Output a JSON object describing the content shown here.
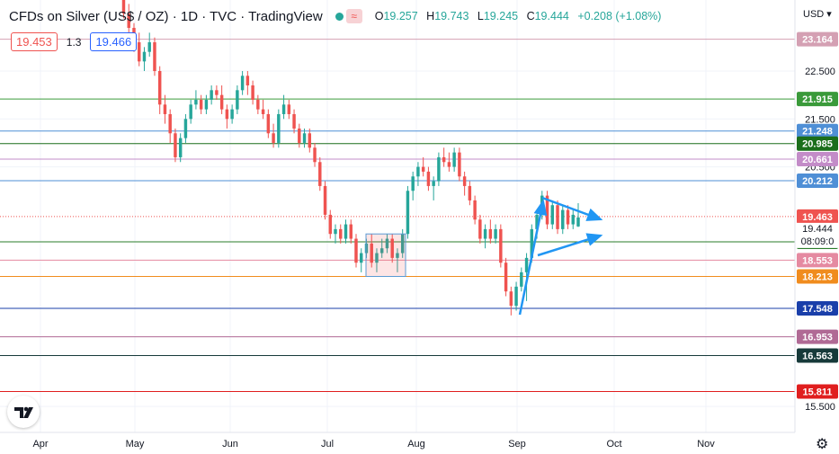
{
  "header": {
    "title": "CFDs on Silver (US$ / OZ) · 1D · TVC · TradingView",
    "wave_icon": "≈",
    "ohlc": [
      {
        "key": "O",
        "value": "19.257"
      },
      {
        "key": "H",
        "value": "19.743"
      },
      {
        "key": "L",
        "value": "19.245"
      },
      {
        "key": "C",
        "value": "19.444"
      },
      {
        "key": "",
        "value": "+0.208 (+1.08%)"
      }
    ],
    "status_color": "#26a69a"
  },
  "trade": {
    "sell_price": "19.453",
    "spread": "1.3",
    "buy_price": "19.466"
  },
  "price_axis": {
    "currency": "USD",
    "ticks": [
      "22.500",
      "21.500",
      "20.500",
      "15.500"
    ]
  },
  "time_axis": {
    "labels": [
      "Apr",
      "May",
      "Jun",
      "Jul",
      "Aug",
      "Sep",
      "Oct",
      "Nov"
    ]
  },
  "levels": [
    {
      "label": "23.164",
      "value": 23.164,
      "color": "#d4a0b3"
    },
    {
      "label": "21.915",
      "value": 21.915,
      "color": "#3a9a3a"
    },
    {
      "label": "21.248",
      "value": 21.248,
      "color": "#4f8fd6"
    },
    {
      "label": "20.985",
      "value": 20.985,
      "color": "#1b6e1b"
    },
    {
      "label": "20.661",
      "value": 20.661,
      "color": "#c38cc8"
    },
    {
      "label": "20.212",
      "value": 20.212,
      "color": "#4f8fd6"
    },
    {
      "label": "18.935",
      "value": 18.935,
      "color": "#2a7d2a"
    },
    {
      "label": "18.553",
      "value": 18.553,
      "color": "#e58aa1"
    },
    {
      "label": "18.213",
      "value": 18.213,
      "color": "#f08c1e"
    },
    {
      "label": "17.548",
      "value": 17.548,
      "color": "#1a3faa"
    },
    {
      "label": "16.953",
      "value": 16.953,
      "color": "#b06a95"
    },
    {
      "label": "16.563",
      "value": 16.563,
      "color": "#173a3a"
    },
    {
      "label": "15.811",
      "value": 15.811,
      "color": "#e01e1e"
    }
  ],
  "current_price": {
    "label": "19.463",
    "color": "#ef5350"
  },
  "last_price": {
    "label": "19.444",
    "countdown": "08:09:0"
  },
  "colors": {
    "up": "#26a69a",
    "down": "#ef5350",
    "arrow": "#2196f3"
  },
  "chart_data": {
    "type": "candlestick",
    "title": "CFDs on Silver (US$ / OZ) · 1D · TVC · TradingView",
    "x_labels": [
      "Apr",
      "May",
      "Jun",
      "Jul",
      "Aug",
      "Sep",
      "Oct",
      "Nov"
    ],
    "y_ticks": [
      22.5,
      21.5,
      20.5,
      15.5
    ],
    "ylim": [
      15.2,
      24.5
    ],
    "candles": [
      [
        24.3,
        24.9,
        24.1,
        24.6
      ],
      [
        24.6,
        24.7,
        24.1,
        24.2
      ],
      [
        24.2,
        24.4,
        23.6,
        23.7
      ],
      [
        23.7,
        23.9,
        23.3,
        23.4
      ],
      [
        23.4,
        23.5,
        22.9,
        23.1
      ],
      [
        23.1,
        23.3,
        22.6,
        22.7
      ],
      [
        22.7,
        23.0,
        22.5,
        22.9
      ],
      [
        22.9,
        23.3,
        22.8,
        23.1
      ],
      [
        23.1,
        23.2,
        22.4,
        22.5
      ],
      [
        22.5,
        22.6,
        21.6,
        21.8
      ],
      [
        21.8,
        22.0,
        21.4,
        21.6
      ],
      [
        21.6,
        21.7,
        21.0,
        21.2
      ],
      [
        21.2,
        21.3,
        20.6,
        20.7
      ],
      [
        20.7,
        21.2,
        20.6,
        21.1
      ],
      [
        21.1,
        21.6,
        21.0,
        21.5
      ],
      [
        21.5,
        21.9,
        21.4,
        21.8
      ],
      [
        21.8,
        22.1,
        21.7,
        21.9
      ],
      [
        21.9,
        22.0,
        21.6,
        21.7
      ],
      [
        21.7,
        22.0,
        21.6,
        21.9
      ],
      [
        21.9,
        22.2,
        21.8,
        22.1
      ],
      [
        22.1,
        22.2,
        21.9,
        22.0
      ],
      [
        22.0,
        22.2,
        21.6,
        21.7
      ],
      [
        21.7,
        21.8,
        21.3,
        21.5
      ],
      [
        21.5,
        21.8,
        21.4,
        21.7
      ],
      [
        21.7,
        22.2,
        21.6,
        22.1
      ],
      [
        22.1,
        22.5,
        22.0,
        22.4
      ],
      [
        22.4,
        22.5,
        22.0,
        22.2
      ],
      [
        22.2,
        22.3,
        21.8,
        21.9
      ],
      [
        21.9,
        22.0,
        21.6,
        21.7
      ],
      [
        21.7,
        21.9,
        21.5,
        21.6
      ],
      [
        21.6,
        21.7,
        21.1,
        21.2
      ],
      [
        21.2,
        21.4,
        20.9,
        21.0
      ],
      [
        21.0,
        21.7,
        20.9,
        21.6
      ],
      [
        21.6,
        22.0,
        21.5,
        21.8
      ],
      [
        21.8,
        21.9,
        21.5,
        21.6
      ],
      [
        21.6,
        21.7,
        21.2,
        21.3
      ],
      [
        21.3,
        21.4,
        20.9,
        21.0
      ],
      [
        21.0,
        21.3,
        20.9,
        21.2
      ],
      [
        21.2,
        21.3,
        20.8,
        20.9
      ],
      [
        20.9,
        21.0,
        20.5,
        20.6
      ],
      [
        20.6,
        20.7,
        20.0,
        20.1
      ],
      [
        20.1,
        20.2,
        19.4,
        19.5
      ],
      [
        19.5,
        19.6,
        19.0,
        19.1
      ],
      [
        19.1,
        19.3,
        18.9,
        19.2
      ],
      [
        19.2,
        19.3,
        18.9,
        19.0
      ],
      [
        19.0,
        19.4,
        18.9,
        19.3
      ],
      [
        19.3,
        19.4,
        18.9,
        19.0
      ],
      [
        19.0,
        19.1,
        18.4,
        18.5
      ],
      [
        18.5,
        18.8,
        18.3,
        18.7
      ],
      [
        18.7,
        19.0,
        18.6,
        18.9
      ],
      [
        18.9,
        19.1,
        18.4,
        18.5
      ],
      [
        18.5,
        18.8,
        18.3,
        18.7
      ],
      [
        18.7,
        19.0,
        18.6,
        18.8
      ],
      [
        18.8,
        19.1,
        18.7,
        19.0
      ],
      [
        19.0,
        19.1,
        18.5,
        18.6
      ],
      [
        18.6,
        18.8,
        18.3,
        18.7
      ],
      [
        18.7,
        19.2,
        18.6,
        19.1
      ],
      [
        19.1,
        20.1,
        19.0,
        20.0
      ],
      [
        20.0,
        20.4,
        19.8,
        20.3
      ],
      [
        20.3,
        20.6,
        20.1,
        20.5
      ],
      [
        20.5,
        20.7,
        20.3,
        20.4
      ],
      [
        20.4,
        20.5,
        20.0,
        20.1
      ],
      [
        20.1,
        20.3,
        19.8,
        20.2
      ],
      [
        20.2,
        20.8,
        20.1,
        20.7
      ],
      [
        20.7,
        20.9,
        20.5,
        20.6
      ],
      [
        20.6,
        20.8,
        20.4,
        20.5
      ],
      [
        20.5,
        20.9,
        20.4,
        20.8
      ],
      [
        20.8,
        20.9,
        20.2,
        20.3
      ],
      [
        20.3,
        20.4,
        19.9,
        20.1
      ],
      [
        20.1,
        20.2,
        19.7,
        19.8
      ],
      [
        19.8,
        19.9,
        19.3,
        19.4
      ],
      [
        19.4,
        19.5,
        18.9,
        19.0
      ],
      [
        19.0,
        19.3,
        18.8,
        19.2
      ],
      [
        19.2,
        19.4,
        18.9,
        19.0
      ],
      [
        19.0,
        19.3,
        18.9,
        19.2
      ],
      [
        19.2,
        19.3,
        18.4,
        18.5
      ],
      [
        18.5,
        18.6,
        17.8,
        17.9
      ],
      [
        17.9,
        18.0,
        17.4,
        17.6
      ],
      [
        17.6,
        18.1,
        17.5,
        18.0
      ],
      [
        18.0,
        18.4,
        17.9,
        18.3
      ],
      [
        18.3,
        18.7,
        17.7,
        18.6
      ],
      [
        18.6,
        19.3,
        18.5,
        19.2
      ],
      [
        19.2,
        19.6,
        19.0,
        19.5
      ],
      [
        19.5,
        20.0,
        19.4,
        19.9
      ],
      [
        19.9,
        20.0,
        19.2,
        19.3
      ],
      [
        19.3,
        19.8,
        19.2,
        19.7
      ],
      [
        19.7,
        19.8,
        19.1,
        19.2
      ],
      [
        19.2,
        19.7,
        19.1,
        19.6
      ],
      [
        19.6,
        19.7,
        19.2,
        19.3
      ],
      [
        19.3,
        19.6,
        19.2,
        19.5
      ],
      [
        19.257,
        19.743,
        19.245,
        19.444
      ]
    ]
  }
}
